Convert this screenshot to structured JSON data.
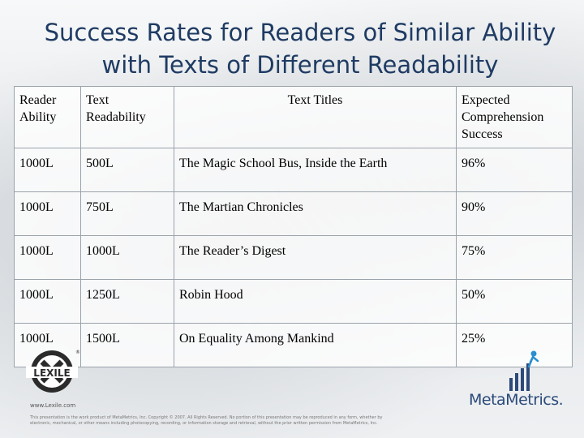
{
  "title": {
    "line1": "Success Rates for Readers of Similar Ability",
    "line2": "with Texts of Different Readability"
  },
  "table": {
    "headers": {
      "reader_ability": "Reader Ability",
      "text_readability": "Text Readability",
      "text_titles": "Text Titles",
      "expected_success": "Expected Comprehension Success"
    },
    "rows": [
      {
        "reader": "1000L",
        "readability": "500L",
        "title": "The Magic School Bus, Inside the Earth",
        "success": "96%"
      },
      {
        "reader": "1000L",
        "readability": "750L",
        "title": "The Martian Chronicles",
        "success": "90%"
      },
      {
        "reader": "1000L",
        "readability": "1000L",
        "title": "The Reader’s Digest",
        "success": "75%"
      },
      {
        "reader": "1000L",
        "readability": "1250L",
        "title": "Robin Hood",
        "success": "50%"
      },
      {
        "reader": "1000L",
        "readability": "1500L",
        "title": "On Equality Among Mankind",
        "success": "25%"
      }
    ]
  },
  "footer": {
    "lexile_logo_text": "LEXILE",
    "lexile_url": "www.Lexile.com",
    "copyright": "This presentation is the work product of MetaMetrics, Inc. Copyright © 2007. All Rights Reserved. No portion of this presentation may be reproduced in any form, whether by electronic, mechanical, or other means including photocopying, recording, or information storage and retrieval, without the prior written permission from MetaMetrics, Inc.",
    "metametrics_logo_text": "MetaMetrics."
  },
  "colors": {
    "title": "#1f3b63",
    "brand_blue": "#2c4a7a"
  }
}
